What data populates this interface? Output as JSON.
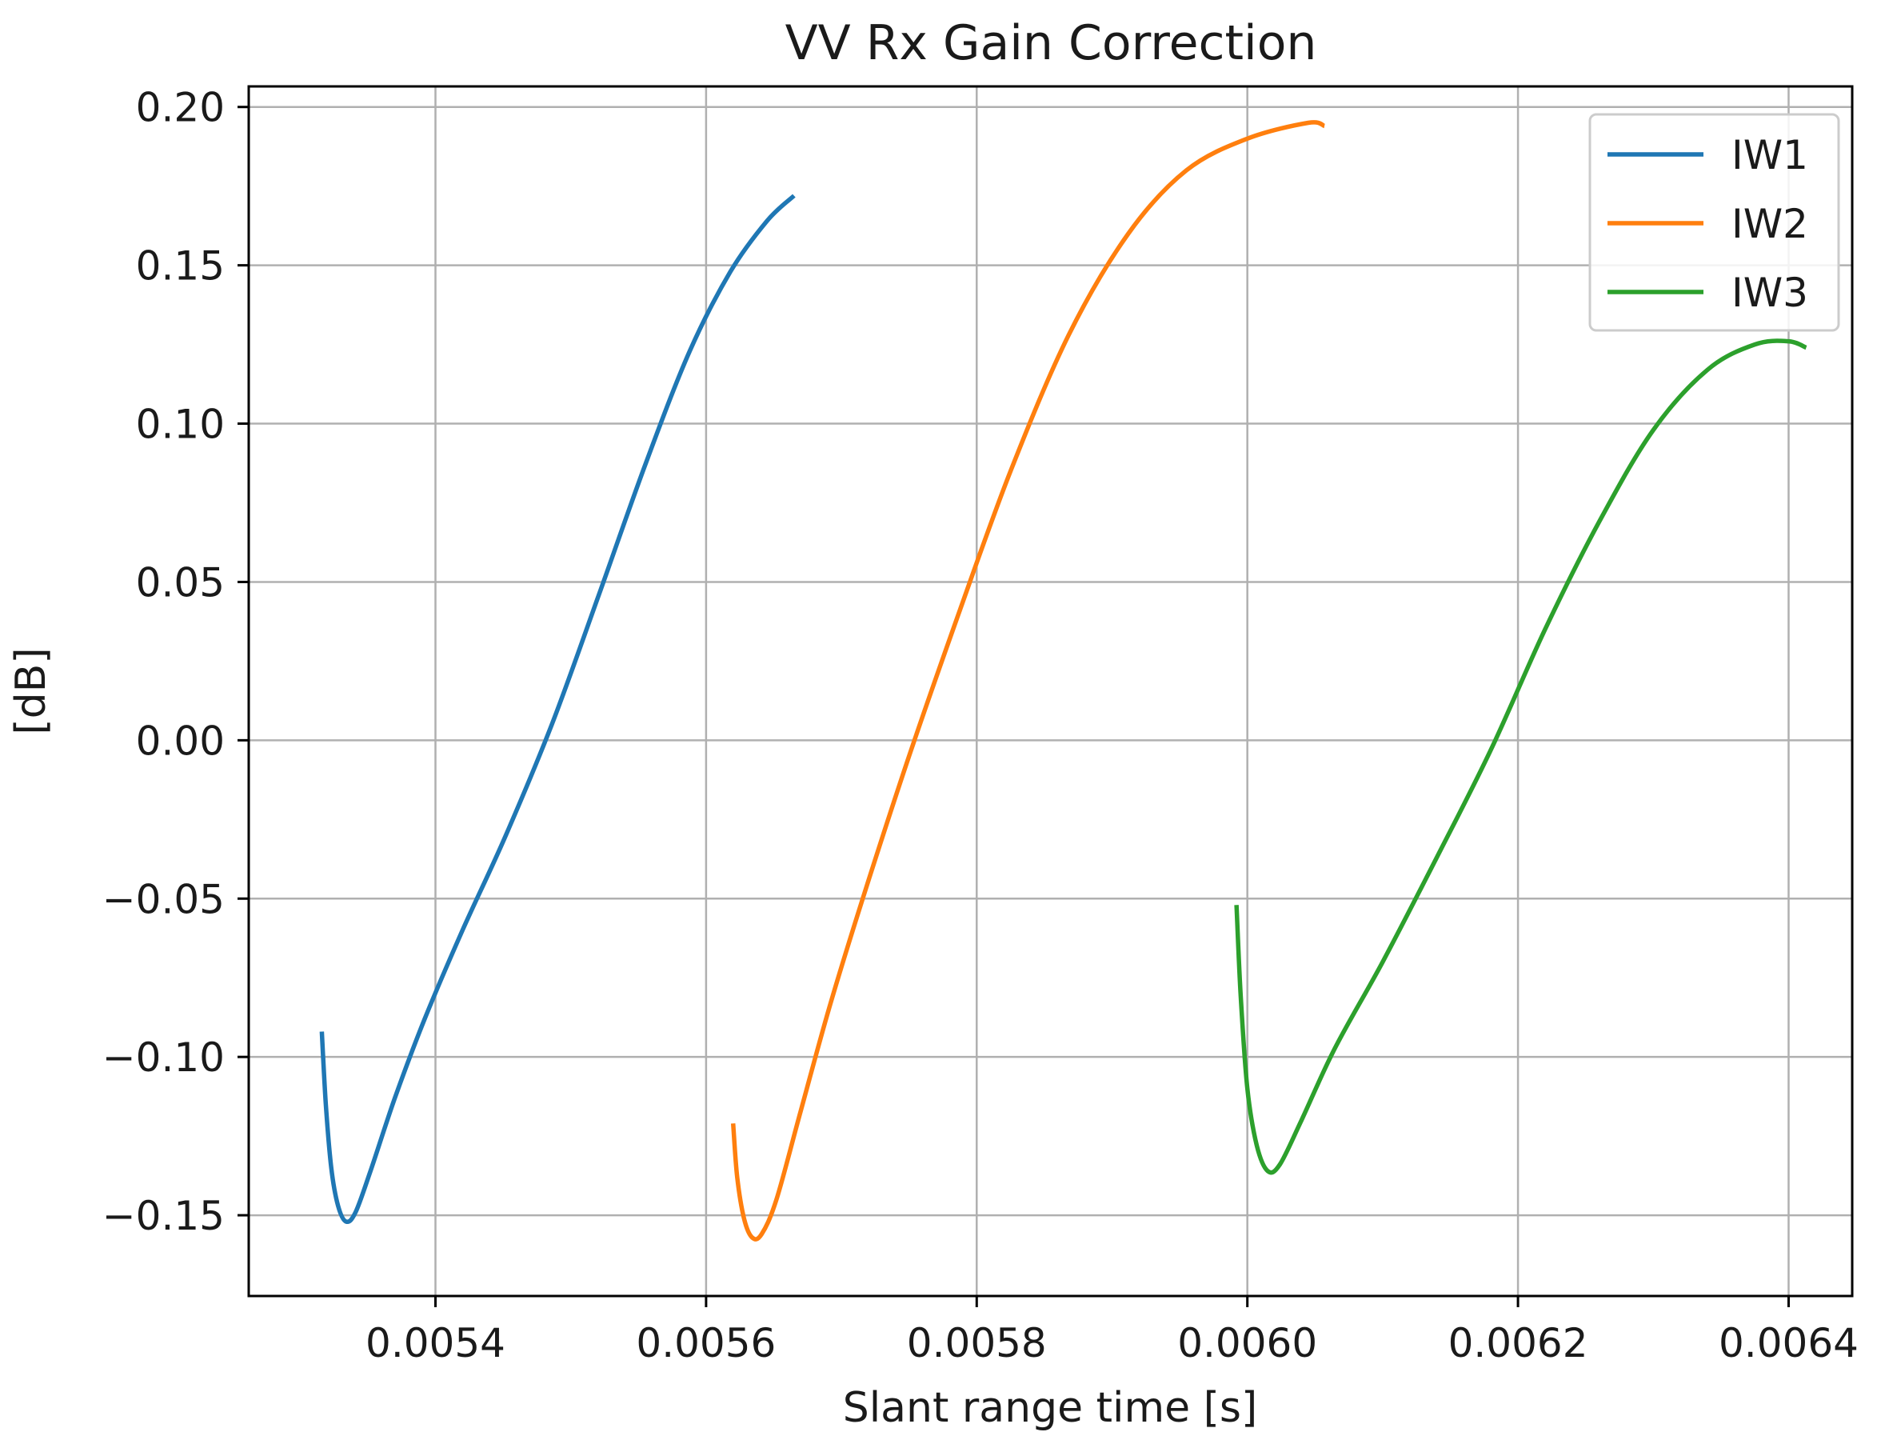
{
  "chart_data": {
    "type": "line",
    "title": "VV Rx Gain Correction",
    "xlabel": "Slant range time [s]",
    "ylabel": "[dB]",
    "xlim": [
      0.005262,
      0.006447
    ],
    "ylim": [
      -0.1755,
      0.2065
    ],
    "xticks": [
      0.0054,
      0.0056,
      0.0058,
      0.006,
      0.0062,
      0.0064
    ],
    "xtick_labels": [
      "0.0054",
      "0.0056",
      "0.0058",
      "0.0060",
      "0.0062",
      "0.0064"
    ],
    "yticks": [
      -0.15,
      -0.1,
      -0.05,
      0.0,
      0.05,
      0.1,
      0.15,
      0.2
    ],
    "ytick_labels": [
      "−0.15",
      "−0.10",
      "−0.05",
      "0.00",
      "0.05",
      "0.10",
      "0.15",
      "0.20"
    ],
    "grid": true,
    "legend_position": "top-right",
    "series": [
      {
        "name": "IW1",
        "color": "#1f77b4",
        "points": [
          [
            0.005316,
            -0.092
          ],
          [
            0.005319,
            -0.115
          ],
          [
            0.005323,
            -0.135
          ],
          [
            0.005328,
            -0.147
          ],
          [
            0.005334,
            -0.152
          ],
          [
            0.005341,
            -0.149
          ],
          [
            0.005352,
            -0.136
          ],
          [
            0.00537,
            -0.113
          ],
          [
            0.005392,
            -0.088
          ],
          [
            0.00542,
            -0.06
          ],
          [
            0.005452,
            -0.03
          ],
          [
            0.005486,
            0.005
          ],
          [
            0.00552,
            0.045
          ],
          [
            0.005555,
            0.087
          ],
          [
            0.005588,
            0.123
          ],
          [
            0.005618,
            0.148
          ],
          [
            0.005645,
            0.164
          ],
          [
            0.005665,
            0.172
          ]
        ]
      },
      {
        "name": "IW2",
        "color": "#ff7f0e",
        "points": [
          [
            0.00562,
            -0.121
          ],
          [
            0.005623,
            -0.138
          ],
          [
            0.005628,
            -0.151
          ],
          [
            0.005634,
            -0.157
          ],
          [
            0.005641,
            -0.156
          ],
          [
            0.005652,
            -0.145
          ],
          [
            0.00567,
            -0.117
          ],
          [
            0.005692,
            -0.083
          ],
          [
            0.005718,
            -0.047
          ],
          [
            0.00575,
            -0.005
          ],
          [
            0.005785,
            0.038
          ],
          [
            0.005825,
            0.085
          ],
          [
            0.005868,
            0.128
          ],
          [
            0.005912,
            0.16
          ],
          [
            0.005955,
            0.18
          ],
          [
            0.006,
            0.19
          ],
          [
            0.006045,
            0.195
          ],
          [
            0.006057,
            0.194
          ]
        ]
      },
      {
        "name": "IW3",
        "color": "#2ca02c",
        "points": [
          [
            0.005992,
            -0.052
          ],
          [
            0.005995,
            -0.08
          ],
          [
            0.006,
            -0.11
          ],
          [
            0.006007,
            -0.128
          ],
          [
            0.006015,
            -0.136
          ],
          [
            0.006024,
            -0.134
          ],
          [
            0.00604,
            -0.12
          ],
          [
            0.006065,
            -0.097
          ],
          [
            0.0061,
            -0.07
          ],
          [
            0.00614,
            -0.037
          ],
          [
            0.00618,
            -0.003
          ],
          [
            0.00622,
            0.035
          ],
          [
            0.00626,
            0.069
          ],
          [
            0.0063,
            0.098
          ],
          [
            0.00634,
            0.117
          ],
          [
            0.006375,
            0.125
          ],
          [
            0.0064,
            0.126
          ],
          [
            0.006413,
            0.124
          ]
        ]
      }
    ]
  }
}
